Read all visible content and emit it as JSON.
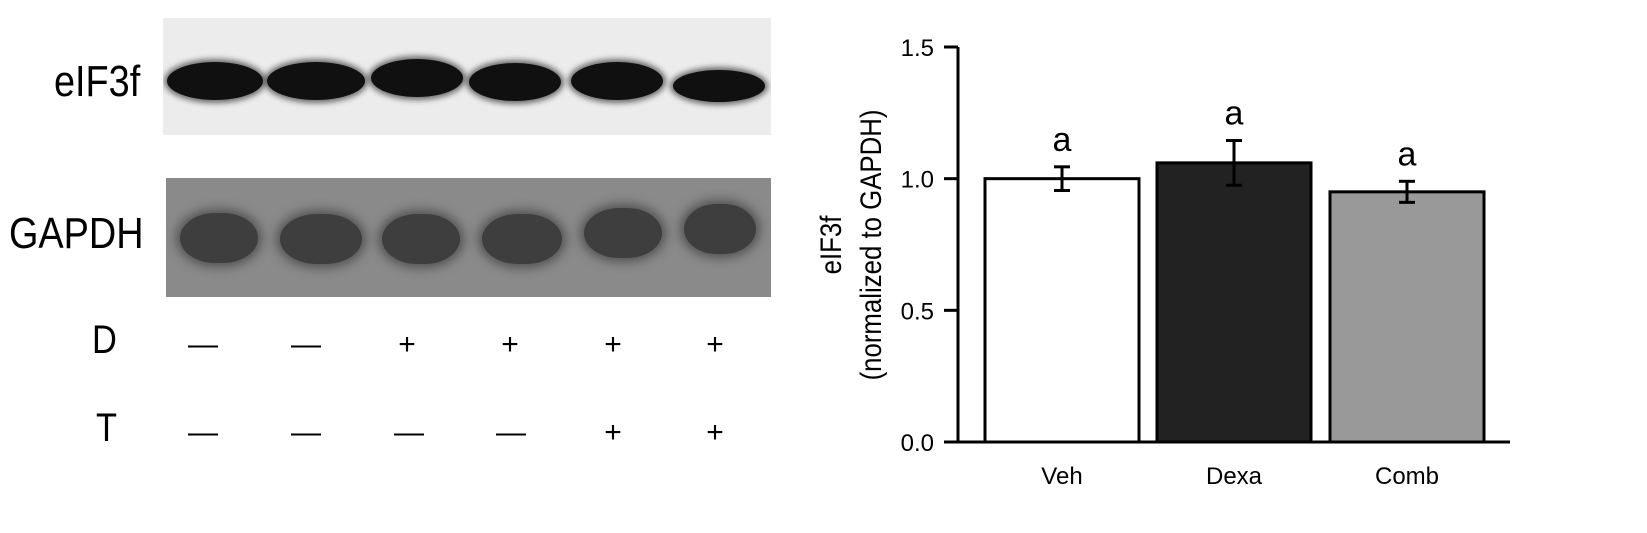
{
  "blot": {
    "row_labels": [
      "eIF3f",
      "GAPDH"
    ],
    "treatments": [
      {
        "label": "D",
        "signs": [
          "—",
          "—",
          "+",
          "+",
          "+",
          "+"
        ]
      },
      {
        "label": "T",
        "signs": [
          "—",
          "—",
          "—",
          "—",
          "+",
          "+"
        ]
      }
    ]
  },
  "chart_data": {
    "type": "bar",
    "categories": [
      "Veh",
      "Dexa",
      "Comb"
    ],
    "values": [
      1.0,
      1.06,
      0.95
    ],
    "errors": [
      0.045,
      0.085,
      0.04
    ],
    "colors": [
      "#ffffff",
      "#222222",
      "#999999"
    ],
    "significance_labels": [
      "a",
      "a",
      "a"
    ],
    "ylabel": [
      "eIF3f",
      "(normalized to GAPDH)"
    ],
    "ylim": [
      0,
      1.5
    ],
    "yticks": [
      "0.0",
      "0.5",
      "1.0",
      "1.5"
    ],
    "grid": false
  }
}
